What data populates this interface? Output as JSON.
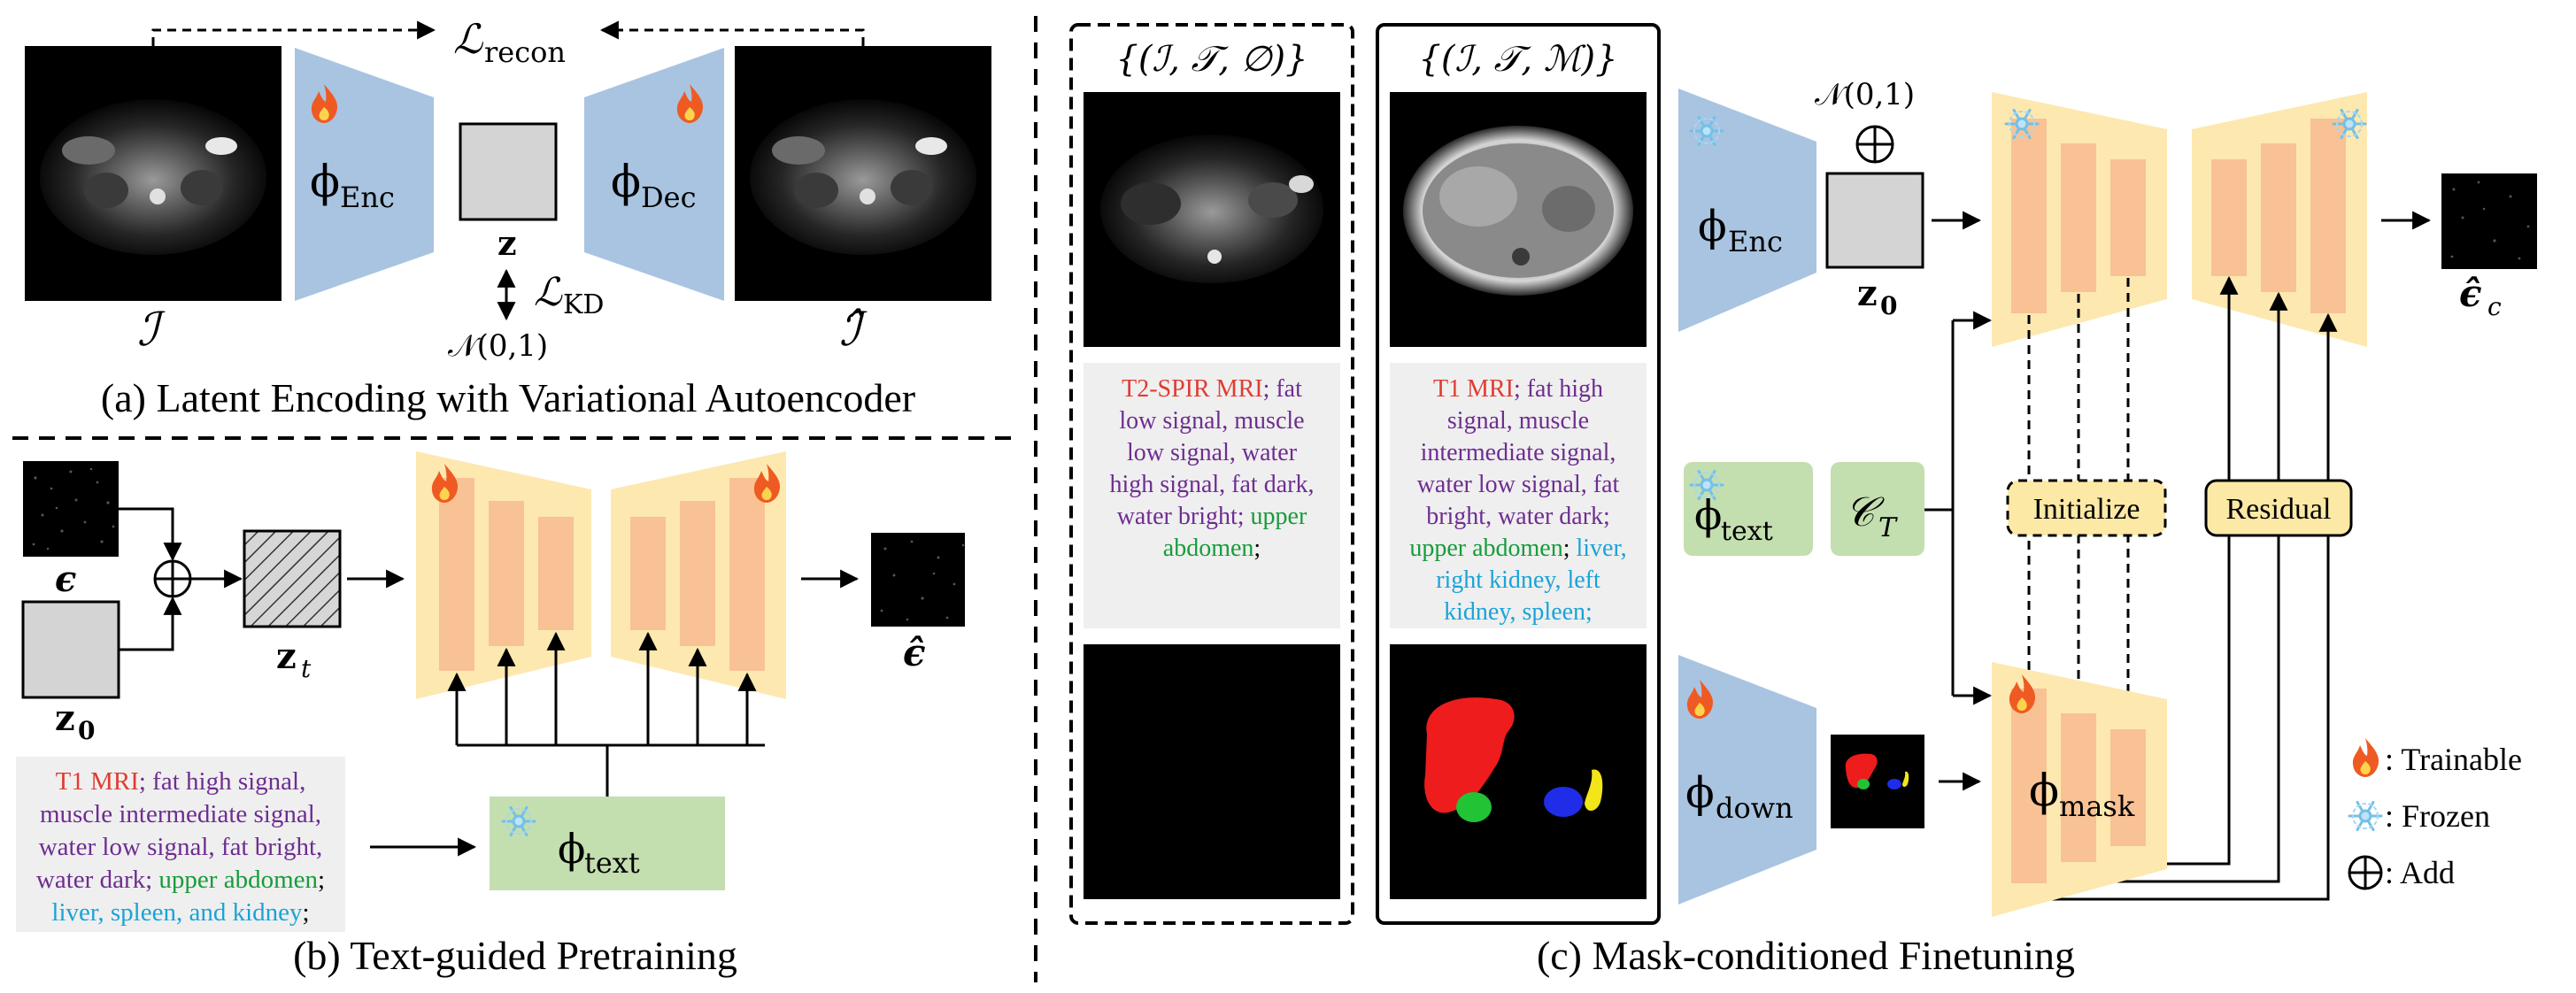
{
  "colors": {
    "encoder_blue": "#a9c4e1",
    "unet_yellow": "#fde8b0",
    "unet_orange": "#f8c294",
    "text_green": "#c3deaf",
    "latent_gray": "#d4d4d4",
    "badge_yellow": "#fde9a6",
    "text_red": "#e03c32",
    "text_purple": "#6e2d91",
    "text_green_dark": "#179c3b",
    "text_cyan": "#1aa3d8",
    "prompt_bg": "#efefef"
  },
  "panel_a": {
    "caption": "(a) Latent Encoding with Variational Autoencoder",
    "loss_recon": "ℒ",
    "loss_recon_sub": "recon",
    "loss_kd": "ℒ",
    "loss_kd_sub": "KD",
    "normal": "𝒩(0,1)",
    "enc_symbol": "ϕ",
    "enc_sub": "Enc",
    "dec_symbol": "ϕ",
    "dec_sub": "Dec",
    "latent": "z",
    "input_label": "ℐ",
    "output_label": "ℐ̂",
    "enc_icon": "fire-icon",
    "dec_icon": "fire-icon"
  },
  "panel_b": {
    "caption": "(b) Text-guided Pretraining",
    "noise_label": "ϵ",
    "z0_label": "z",
    "z0_sub": "0",
    "zt_label": "z",
    "zt_sub": "t",
    "out_label": "ϵ̂",
    "text_enc_symbol": "ϕ",
    "text_enc_sub": "text",
    "text_enc_icon": "snowflake-icon",
    "unet_icon": "fire-icon",
    "prompt_lines": [
      [
        {
          "t": "T1 MRI",
          "c": "red"
        },
        {
          "t": "; fat high signal,",
          "c": "purple"
        }
      ],
      [
        {
          "t": "muscle intermediate signal,",
          "c": "purple"
        }
      ],
      [
        {
          "t": "water low signal, fat bright,",
          "c": "purple"
        }
      ],
      [
        {
          "t": "water dark; ",
          "c": "purple"
        },
        {
          "t": "upper abdomen",
          "c": "green"
        },
        {
          "t": ";",
          "c": "black"
        }
      ],
      [
        {
          "t": "liver, spleen, and kidney",
          "c": "cyan"
        },
        {
          "t": ";",
          "c": "black"
        }
      ]
    ]
  },
  "panel_c": {
    "caption": "(c) Mask-conditioned Finetuning",
    "set1_title": "{(ℐ, 𝒯, ∅)}",
    "set2_title": "{(ℐ, 𝒯, ℳ)}",
    "prompt1_lines": [
      [
        {
          "t": "T2-SPIR MRI",
          "c": "red"
        },
        {
          "t": "; fat",
          "c": "purple"
        }
      ],
      [
        {
          "t": "low signal, muscle",
          "c": "purple"
        }
      ],
      [
        {
          "t": "low signal, water",
          "c": "purple"
        }
      ],
      [
        {
          "t": "high signal, fat dark,",
          "c": "purple"
        }
      ],
      [
        {
          "t": "water bright; ",
          "c": "purple"
        },
        {
          "t": "upper",
          "c": "green"
        }
      ],
      [
        {
          "t": "abdomen",
          "c": "green"
        },
        {
          "t": ";",
          "c": "black"
        }
      ]
    ],
    "prompt2_lines": [
      [
        {
          "t": "T1 MRI",
          "c": "red"
        },
        {
          "t": "; fat high",
          "c": "purple"
        }
      ],
      [
        {
          "t": "signal, muscle",
          "c": "purple"
        }
      ],
      [
        {
          "t": "intermediate signal,",
          "c": "purple"
        }
      ],
      [
        {
          "t": "water low signal, fat",
          "c": "purple"
        }
      ],
      [
        {
          "t": "bright, water dark;",
          "c": "purple"
        }
      ],
      [
        {
          "t": "upper abdomen",
          "c": "green"
        },
        {
          "t": "; ",
          "c": "black"
        },
        {
          "t": "liver,",
          "c": "cyan"
        }
      ],
      [
        {
          "t": "right kidney, left",
          "c": "cyan"
        }
      ],
      [
        {
          "t": "kidney, spleen;",
          "c": "cyan"
        }
      ]
    ],
    "normal": "𝒩(0,1)",
    "enc_symbol": "ϕ",
    "enc_sub": "Enc",
    "z0_label": "z",
    "z0_sub": "0",
    "out_label": "ϵ̂",
    "out_sub": "c",
    "text_symbol": "ϕ",
    "text_sub": "text",
    "cond_symbol": "𝒞",
    "cond_sub": "T",
    "down_symbol": "ϕ",
    "down_sub": "down",
    "mask_symbol": "ϕ",
    "mask_sub": "mask",
    "initialize_label": "Initialize",
    "residual_label": "Residual"
  },
  "legend": {
    "trainable_label": ": Trainable",
    "frozen_label": ": Frozen",
    "add_label": ": Add",
    "trainable_icon": "fire-icon",
    "frozen_icon": "snowflake-icon",
    "add_icon": "circle-plus-icon"
  }
}
